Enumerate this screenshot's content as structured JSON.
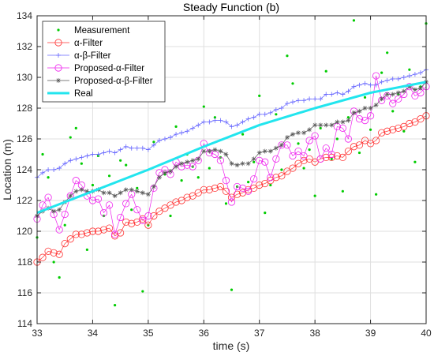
{
  "chart_data": {
    "type": "line",
    "title": "Steady Function (b)",
    "xlabel": "time (s)",
    "ylabel": "Location (m)",
    "xlim": [
      33,
      40
    ],
    "ylim": [
      114,
      134
    ],
    "x_ticks": [
      33,
      34,
      35,
      36,
      37,
      38,
      39,
      40
    ],
    "y_ticks": [
      114,
      116,
      118,
      120,
      122,
      124,
      126,
      128,
      130,
      132,
      134
    ],
    "grid": true,
    "legend_position": "top-left",
    "series": [
      {
        "name": "Measurement",
        "style": "points",
        "color": "#00cc00",
        "x": [
          33.0,
          33.1,
          33.2,
          33.3,
          33.4,
          33.5,
          33.6,
          33.7,
          33.8,
          33.9,
          34.0,
          34.1,
          34.2,
          34.3,
          34.4,
          34.5,
          34.6,
          34.7,
          34.8,
          34.9,
          35.0,
          35.1,
          35.2,
          35.3,
          35.4,
          35.5,
          35.6,
          35.7,
          35.8,
          35.9,
          36.0,
          36.1,
          36.2,
          36.3,
          36.4,
          36.5,
          36.6,
          36.7,
          36.8,
          36.9,
          37.0,
          37.1,
          37.2,
          37.3,
          37.4,
          37.5,
          37.6,
          37.7,
          37.8,
          37.9,
          38.0,
          38.1,
          38.2,
          38.3,
          38.4,
          38.5,
          38.6,
          38.7,
          38.8,
          38.9,
          39.0,
          39.1,
          39.2,
          39.3,
          39.4,
          39.5,
          39.6,
          39.7,
          39.8,
          39.9,
          40.0
        ],
        "y": [
          119.6,
          125.0,
          123.5,
          118.0,
          117.0,
          120.4,
          126.1,
          126.7,
          124.4,
          118.8,
          123.0,
          124.9,
          121.0,
          123.6,
          115.2,
          124.6,
          124.3,
          121.4,
          122.8,
          116.1,
          120.4,
          125.8,
          128.6,
          123.7,
          121.0,
          126.8,
          123.3,
          125.0,
          124.2,
          123.5,
          128.1,
          124.1,
          127.4,
          124.8,
          121.8,
          116.2,
          122.9,
          126.3,
          123.2,
          124.5,
          128.8,
          121.2,
          123.0,
          127.6,
          124.0,
          131.4,
          129.6,
          125.7,
          124.1,
          125.3,
          122.3,
          126.7,
          130.4,
          124.7,
          126.0,
          122.6,
          127.4,
          133.7,
          125.1,
          128.7,
          126.6,
          122.4,
          130.3,
          131.6,
          127.8,
          128.9,
          126.5,
          130.5,
          124.5,
          129.4,
          133.5
        ]
      },
      {
        "name": "α-Filter",
        "style": "circle-line",
        "color": "#ff3333",
        "x": [
          33.0,
          33.1,
          33.2,
          33.3,
          33.4,
          33.5,
          33.6,
          33.7,
          33.8,
          33.9,
          34.0,
          34.1,
          34.2,
          34.3,
          34.4,
          34.5,
          34.6,
          34.7,
          34.8,
          34.9,
          35.0,
          35.1,
          35.2,
          35.3,
          35.4,
          35.5,
          35.6,
          35.7,
          35.8,
          35.9,
          36.0,
          36.1,
          36.2,
          36.3,
          36.4,
          36.5,
          36.6,
          36.7,
          36.8,
          36.9,
          37.0,
          37.1,
          37.2,
          37.3,
          37.4,
          37.5,
          37.6,
          37.7,
          37.8,
          37.9,
          38.0,
          38.1,
          38.2,
          38.3,
          38.4,
          38.5,
          38.6,
          38.7,
          38.8,
          38.9,
          39.0,
          39.1,
          39.2,
          39.3,
          39.4,
          39.5,
          39.6,
          39.7,
          39.8,
          39.9,
          40.0
        ],
        "y": [
          118.0,
          118.3,
          118.7,
          118.6,
          118.5,
          119.2,
          119.5,
          119.8,
          119.8,
          119.9,
          120.0,
          120.0,
          120.1,
          120.2,
          119.7,
          119.9,
          120.6,
          120.5,
          120.6,
          120.8,
          120.4,
          121.0,
          121.3,
          121.5,
          121.7,
          121.9,
          122.0,
          122.2,
          122.3,
          122.5,
          122.7,
          122.7,
          122.8,
          122.9,
          122.6,
          122.2,
          122.4,
          122.5,
          122.7,
          122.8,
          123.0,
          123.1,
          123.3,
          123.5,
          123.6,
          123.9,
          124.1,
          124.4,
          124.6,
          124.7,
          124.5,
          124.7,
          124.8,
          124.8,
          124.9,
          124.8,
          125.2,
          125.5,
          125.6,
          125.9,
          125.7,
          125.9,
          126.4,
          126.5,
          126.6,
          126.7,
          126.8,
          127.0,
          127.1,
          127.3,
          127.5
        ]
      },
      {
        "name": "α-β-Filter",
        "style": "plus-line",
        "color": "#6666ff",
        "x": [
          33.0,
          33.1,
          33.2,
          33.3,
          33.4,
          33.5,
          33.6,
          33.7,
          33.8,
          33.9,
          34.0,
          34.1,
          34.2,
          34.3,
          34.4,
          34.5,
          34.6,
          34.7,
          34.8,
          34.9,
          35.0,
          35.1,
          35.2,
          35.3,
          35.4,
          35.5,
          35.6,
          35.7,
          35.8,
          35.9,
          36.0,
          36.1,
          36.2,
          36.3,
          36.4,
          36.5,
          36.6,
          36.7,
          36.8,
          36.9,
          37.0,
          37.1,
          37.2,
          37.3,
          37.4,
          37.5,
          37.6,
          37.7,
          37.8,
          37.9,
          38.0,
          38.1,
          38.2,
          38.3,
          38.4,
          38.5,
          38.6,
          38.7,
          38.8,
          38.9,
          39.0,
          39.1,
          39.2,
          39.3,
          39.4,
          39.5,
          39.6,
          39.7,
          39.8,
          39.9,
          40.0
        ],
        "y": [
          123.5,
          123.8,
          124.0,
          124.0,
          124.1,
          124.4,
          124.6,
          124.7,
          124.8,
          124.9,
          125.0,
          125.0,
          125.1,
          125.2,
          125.1,
          125.3,
          125.5,
          125.4,
          125.4,
          125.4,
          125.3,
          125.6,
          125.9,
          126.0,
          126.1,
          126.3,
          126.4,
          126.5,
          126.7,
          126.9,
          127.1,
          127.1,
          127.2,
          127.2,
          127.1,
          126.8,
          126.9,
          127.1,
          127.3,
          127.4,
          127.6,
          127.6,
          127.7,
          127.9,
          128.0,
          128.3,
          128.4,
          128.5,
          128.5,
          128.6,
          128.6,
          128.6,
          128.9,
          128.9,
          129.0,
          128.9,
          129.1,
          129.4,
          129.5,
          129.6,
          129.5,
          129.5,
          129.7,
          129.8,
          129.9,
          129.9,
          130.0,
          130.1,
          130.2,
          130.3,
          130.5
        ]
      },
      {
        "name": "Proposed-α-Filter",
        "style": "circle-line",
        "color": "#ee22ee",
        "x": [
          33.0,
          33.1,
          33.2,
          33.3,
          33.4,
          33.5,
          33.6,
          33.7,
          33.8,
          33.9,
          34.0,
          34.1,
          34.2,
          34.3,
          34.4,
          34.5,
          34.6,
          34.7,
          34.8,
          34.9,
          35.0,
          35.1,
          35.2,
          35.3,
          35.4,
          35.5,
          35.6,
          35.7,
          35.8,
          35.9,
          36.0,
          36.1,
          36.2,
          36.3,
          36.4,
          36.5,
          36.6,
          36.7,
          36.8,
          36.9,
          37.0,
          37.1,
          37.2,
          37.3,
          37.4,
          37.5,
          37.6,
          37.7,
          37.8,
          37.9,
          38.0,
          38.1,
          38.2,
          38.3,
          38.4,
          38.5,
          38.6,
          38.7,
          38.8,
          38.9,
          39.0,
          39.1,
          39.2,
          39.3,
          39.4,
          39.5,
          39.6,
          39.7,
          39.8,
          39.9,
          40.0
        ],
        "y": [
          120.8,
          121.7,
          122.2,
          121.1,
          120.1,
          121.1,
          122.3,
          123.3,
          123.0,
          122.3,
          122.0,
          122.1,
          121.2,
          121.7,
          119.8,
          120.9,
          121.8,
          122.4,
          121.4,
          120.7,
          121.0,
          122.8,
          123.8,
          124.0,
          123.7,
          124.5,
          124.2,
          124.3,
          124.2,
          124.6,
          125.7,
          125.1,
          125.0,
          124.6,
          123.3,
          121.9,
          122.9,
          122.8,
          122.6,
          123.4,
          124.6,
          124.5,
          123.5,
          124.7,
          125.6,
          125.6,
          124.9,
          125.2,
          124.9,
          125.9,
          126.2,
          124.7,
          125.4,
          125.0,
          126.8,
          126.7,
          126.0,
          127.8,
          127.3,
          127.2,
          127.5,
          130.1,
          128.5,
          128.8,
          128.3,
          128.6,
          128.9,
          129.4,
          128.8,
          129.0,
          129.4
        ]
      },
      {
        "name": "Proposed-α-β-Filter",
        "style": "star-line",
        "color": "#555555",
        "x": [
          33.0,
          33.1,
          33.2,
          33.3,
          33.4,
          33.5,
          33.6,
          33.7,
          33.8,
          33.9,
          34.0,
          34.1,
          34.2,
          34.3,
          34.4,
          34.5,
          34.6,
          34.7,
          34.8,
          34.9,
          35.0,
          35.1,
          35.2,
          35.3,
          35.4,
          35.5,
          35.6,
          35.7,
          35.8,
          35.9,
          36.0,
          36.1,
          36.2,
          36.3,
          36.4,
          36.5,
          36.6,
          36.7,
          36.8,
          36.9,
          37.0,
          37.1,
          37.2,
          37.3,
          37.4,
          37.5,
          37.6,
          37.7,
          37.8,
          37.9,
          38.0,
          38.1,
          38.2,
          38.3,
          38.4,
          38.5,
          38.6,
          38.7,
          38.8,
          38.9,
          39.0,
          39.1,
          39.2,
          39.3,
          39.4,
          39.5,
          39.6,
          39.7,
          39.8,
          39.9,
          40.0
        ],
        "y": [
          121.0,
          121.3,
          121.5,
          121.3,
          121.4,
          121.9,
          122.3,
          122.6,
          122.7,
          122.6,
          122.6,
          122.7,
          122.5,
          122.5,
          122.3,
          122.5,
          122.7,
          122.7,
          122.6,
          122.5,
          122.4,
          122.9,
          123.5,
          123.8,
          123.9,
          124.2,
          124.4,
          124.5,
          124.6,
          124.7,
          125.2,
          125.2,
          125.3,
          125.2,
          125.0,
          124.4,
          124.3,
          124.4,
          124.4,
          124.7,
          125.1,
          125.2,
          125.2,
          125.4,
          125.6,
          126.1,
          126.3,
          126.4,
          126.4,
          126.6,
          126.9,
          126.9,
          126.9,
          126.9,
          127.1,
          127.1,
          127.2,
          127.7,
          127.8,
          128.0,
          128.0,
          128.2,
          128.6,
          128.9,
          128.9,
          129.0,
          129.1,
          129.4,
          129.2,
          129.3,
          129.7
        ]
      },
      {
        "name": "Real",
        "style": "thick-line",
        "color": "#22e5ee",
        "x": [
          33,
          34,
          35,
          36,
          37,
          38,
          39,
          40
        ],
        "y": [
          121.2,
          122.6,
          124.0,
          125.5,
          126.9,
          128.0,
          129.0,
          129.7
        ]
      }
    ]
  }
}
